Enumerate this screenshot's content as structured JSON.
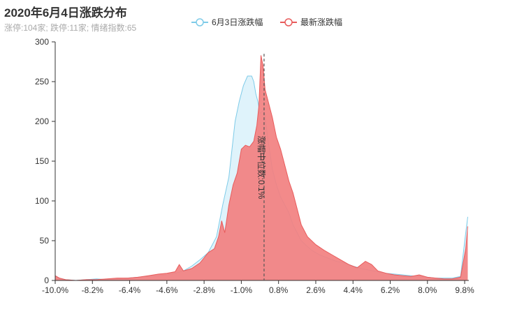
{
  "header": {
    "title": "2020年6月4日涨跌分布",
    "subtitle": "涨停:104家; 跌停:11家; 情绪指数:65"
  },
  "chart_data": {
    "type": "area",
    "xlim": [
      -10.0,
      10.0
    ],
    "ylim": [
      0,
      300
    ],
    "y_ticks": [
      0,
      50,
      100,
      150,
      200,
      250,
      300
    ],
    "x_ticks": [
      "-10.0%",
      "-8.2%",
      "-6.4%",
      "-4.6%",
      "-2.8%",
      "-1.0%",
      "0.8%",
      "2.6%",
      "4.4%",
      "6.2%",
      "8.0%",
      "9.8%"
    ],
    "x_tick_values": [
      -10.0,
      -8.2,
      -6.4,
      -4.6,
      -2.8,
      -1.0,
      0.8,
      2.6,
      4.4,
      6.2,
      8.0,
      9.8
    ],
    "legend_position": "top-center",
    "median_label": "涨幅中位数:0.1%",
    "median_x": 0.1,
    "series": [
      {
        "name": "6月3日涨跌幅",
        "color": "#7ecbe8",
        "fill": "#dff3fb",
        "points": [
          [
            -10.0,
            6
          ],
          [
            -9.8,
            3
          ],
          [
            -9.5,
            1
          ],
          [
            -9.0,
            0
          ],
          [
            -8.5,
            1
          ],
          [
            -8.0,
            2
          ],
          [
            -7.5,
            1
          ],
          [
            -7.0,
            2
          ],
          [
            -6.5,
            3
          ],
          [
            -6.0,
            4
          ],
          [
            -5.5,
            5
          ],
          [
            -5.0,
            6
          ],
          [
            -4.6,
            7
          ],
          [
            -4.2,
            9
          ],
          [
            -3.8,
            12
          ],
          [
            -3.4,
            18
          ],
          [
            -3.0,
            26
          ],
          [
            -2.6,
            35
          ],
          [
            -2.2,
            55
          ],
          [
            -1.9,
            95
          ],
          [
            -1.6,
            130
          ],
          [
            -1.3,
            200
          ],
          [
            -1.1,
            225
          ],
          [
            -0.9,
            245
          ],
          [
            -0.7,
            257
          ],
          [
            -0.5,
            257
          ],
          [
            -0.4,
            250
          ],
          [
            -0.3,
            235
          ],
          [
            -0.2,
            225
          ],
          [
            -0.1,
            210
          ],
          [
            0.1,
            215
          ],
          [
            0.3,
            175
          ],
          [
            0.5,
            140
          ],
          [
            0.7,
            120
          ],
          [
            0.9,
            105
          ],
          [
            1.1,
            95
          ],
          [
            1.3,
            85
          ],
          [
            1.5,
            70
          ],
          [
            1.7,
            60
          ],
          [
            1.9,
            50
          ],
          [
            2.1,
            45
          ],
          [
            2.4,
            38
          ],
          [
            2.8,
            32
          ],
          [
            3.2,
            28
          ],
          [
            3.6,
            24
          ],
          [
            4.0,
            22
          ],
          [
            4.4,
            18
          ],
          [
            4.8,
            15
          ],
          [
            5.2,
            13
          ],
          [
            5.6,
            11
          ],
          [
            6.0,
            9
          ],
          [
            6.4,
            8
          ],
          [
            6.8,
            7
          ],
          [
            7.2,
            6
          ],
          [
            7.6,
            5
          ],
          [
            8.0,
            4
          ],
          [
            8.4,
            3
          ],
          [
            8.8,
            3
          ],
          [
            9.2,
            3
          ],
          [
            9.6,
            5
          ],
          [
            9.85,
            60
          ],
          [
            9.95,
            80
          ]
        ]
      },
      {
        "name": "最新涨跌幅",
        "color": "#e85b5b",
        "fill": "#f28080",
        "points": [
          [
            -10.0,
            6
          ],
          [
            -9.8,
            3
          ],
          [
            -9.5,
            1
          ],
          [
            -9.0,
            0
          ],
          [
            -8.5,
            1
          ],
          [
            -8.0,
            1
          ],
          [
            -7.5,
            2
          ],
          [
            -7.0,
            3
          ],
          [
            -6.5,
            3
          ],
          [
            -6.0,
            4
          ],
          [
            -5.5,
            6
          ],
          [
            -5.0,
            8
          ],
          [
            -4.6,
            9
          ],
          [
            -4.2,
            11
          ],
          [
            -4.0,
            20
          ],
          [
            -3.8,
            12
          ],
          [
            -3.4,
            15
          ],
          [
            -3.0,
            22
          ],
          [
            -2.6,
            35
          ],
          [
            -2.3,
            40
          ],
          [
            -2.1,
            55
          ],
          [
            -1.95,
            75
          ],
          [
            -1.8,
            60
          ],
          [
            -1.6,
            95
          ],
          [
            -1.4,
            120
          ],
          [
            -1.2,
            135
          ],
          [
            -1.0,
            165
          ],
          [
            -0.8,
            170
          ],
          [
            -0.6,
            168
          ],
          [
            -0.4,
            175
          ],
          [
            -0.25,
            195
          ],
          [
            -0.15,
            220
          ],
          [
            -0.05,
            283
          ],
          [
            0.05,
            270
          ],
          [
            0.15,
            240
          ],
          [
            0.3,
            225
          ],
          [
            0.5,
            205
          ],
          [
            0.7,
            180
          ],
          [
            0.9,
            165
          ],
          [
            1.1,
            145
          ],
          [
            1.3,
            125
          ],
          [
            1.5,
            110
          ],
          [
            1.7,
            90
          ],
          [
            1.9,
            70
          ],
          [
            2.2,
            55
          ],
          [
            2.6,
            45
          ],
          [
            3.0,
            38
          ],
          [
            3.4,
            32
          ],
          [
            3.8,
            26
          ],
          [
            4.2,
            20
          ],
          [
            4.6,
            16
          ],
          [
            5.0,
            24
          ],
          [
            5.3,
            20
          ],
          [
            5.6,
            12
          ],
          [
            6.0,
            9
          ],
          [
            6.4,
            7
          ],
          [
            6.8,
            6
          ],
          [
            7.2,
            5
          ],
          [
            7.6,
            7
          ],
          [
            8.0,
            4
          ],
          [
            8.4,
            3
          ],
          [
            8.8,
            2
          ],
          [
            9.2,
            2
          ],
          [
            9.6,
            4
          ],
          [
            9.85,
            40
          ],
          [
            9.95,
            68
          ]
        ]
      }
    ]
  }
}
